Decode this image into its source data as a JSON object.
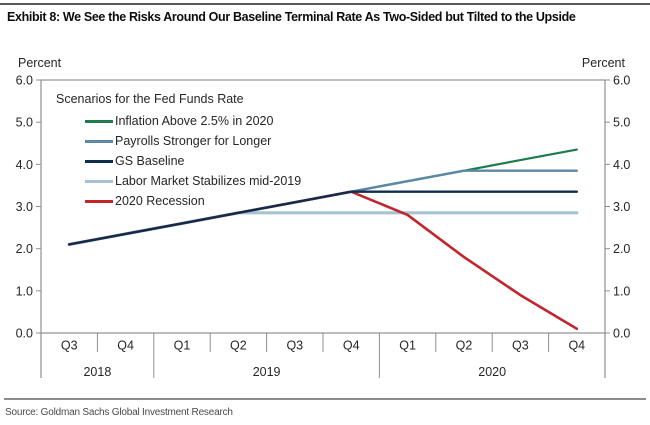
{
  "page": {
    "title": "Exhibit 8: We See the Risks Around Our Baseline Terminal Rate As Two-Sided but Tilted to the Upside",
    "source": "Source: Goldman Sachs Global Investment Research"
  },
  "axes": {
    "left_unit": "Percent",
    "right_unit": "Percent",
    "y_ticks": [
      {
        "value": 6.0,
        "label": "6.0"
      },
      {
        "value": 5.0,
        "label": "5.0"
      },
      {
        "value": 4.0,
        "label": "4.0"
      },
      {
        "value": 3.0,
        "label": "3.0"
      },
      {
        "value": 2.0,
        "label": "2.0"
      },
      {
        "value": 1.0,
        "label": "1.0"
      },
      {
        "value": 0.0,
        "label": "0.0"
      }
    ],
    "quarters": [
      "Q3",
      "Q4",
      "Q1",
      "Q2",
      "Q3",
      "Q4",
      "Q1",
      "Q2",
      "Q3",
      "Q4"
    ],
    "years": [
      {
        "label": "2018",
        "quarters": 2
      },
      {
        "label": "2019",
        "quarters": 4
      },
      {
        "label": "2020",
        "quarters": 4
      }
    ]
  },
  "chart_data": {
    "type": "line",
    "legend_header": "Scenarios for the Fed Funds Rate",
    "ylabel": "Percent",
    "ylim": [
      0,
      6
    ],
    "grid": false,
    "legend_position": "top-left-inside",
    "x": [
      "2018 Q3",
      "2018 Q4",
      "2019 Q1",
      "2019 Q2",
      "2019 Q3",
      "2019 Q4",
      "2020 Q1",
      "2020 Q2",
      "2020 Q3",
      "2020 Q4"
    ],
    "series": [
      {
        "name": "Inflation Above 2.5% in 2020",
        "color": "#1e7b4d",
        "stroke_width": 2.2,
        "values": [
          2.1,
          2.35,
          2.6,
          2.85,
          3.1,
          3.35,
          3.6,
          3.85,
          4.1,
          4.35
        ]
      },
      {
        "name": "Payrolls Stronger for Longer",
        "color": "#5d87a6",
        "stroke_width": 2.4,
        "values": [
          2.1,
          2.35,
          2.6,
          2.85,
          3.1,
          3.35,
          3.6,
          3.85,
          3.85,
          3.85
        ]
      },
      {
        "name": "GS Baseline",
        "color": "#0f2d4e",
        "stroke_width": 2.4,
        "values": [
          2.1,
          2.35,
          2.6,
          2.85,
          3.1,
          3.35,
          3.35,
          3.35,
          3.35,
          3.35
        ]
      },
      {
        "name": "Labor Market Stabilizes mid-2019",
        "color": "#a5c3d2",
        "stroke_width": 3.2,
        "values": [
          2.1,
          2.35,
          2.6,
          2.85,
          2.85,
          2.85,
          2.85,
          2.85,
          2.85,
          2.85
        ]
      },
      {
        "name": "2020 Recession",
        "color": "#c4242c",
        "stroke_width": 2.6,
        "values": [
          2.1,
          2.35,
          2.6,
          2.85,
          3.1,
          3.35,
          2.8,
          1.8,
          0.9,
          0.1
        ]
      }
    ],
    "z_order": [
      0,
      1,
      3,
      4,
      2
    ]
  }
}
